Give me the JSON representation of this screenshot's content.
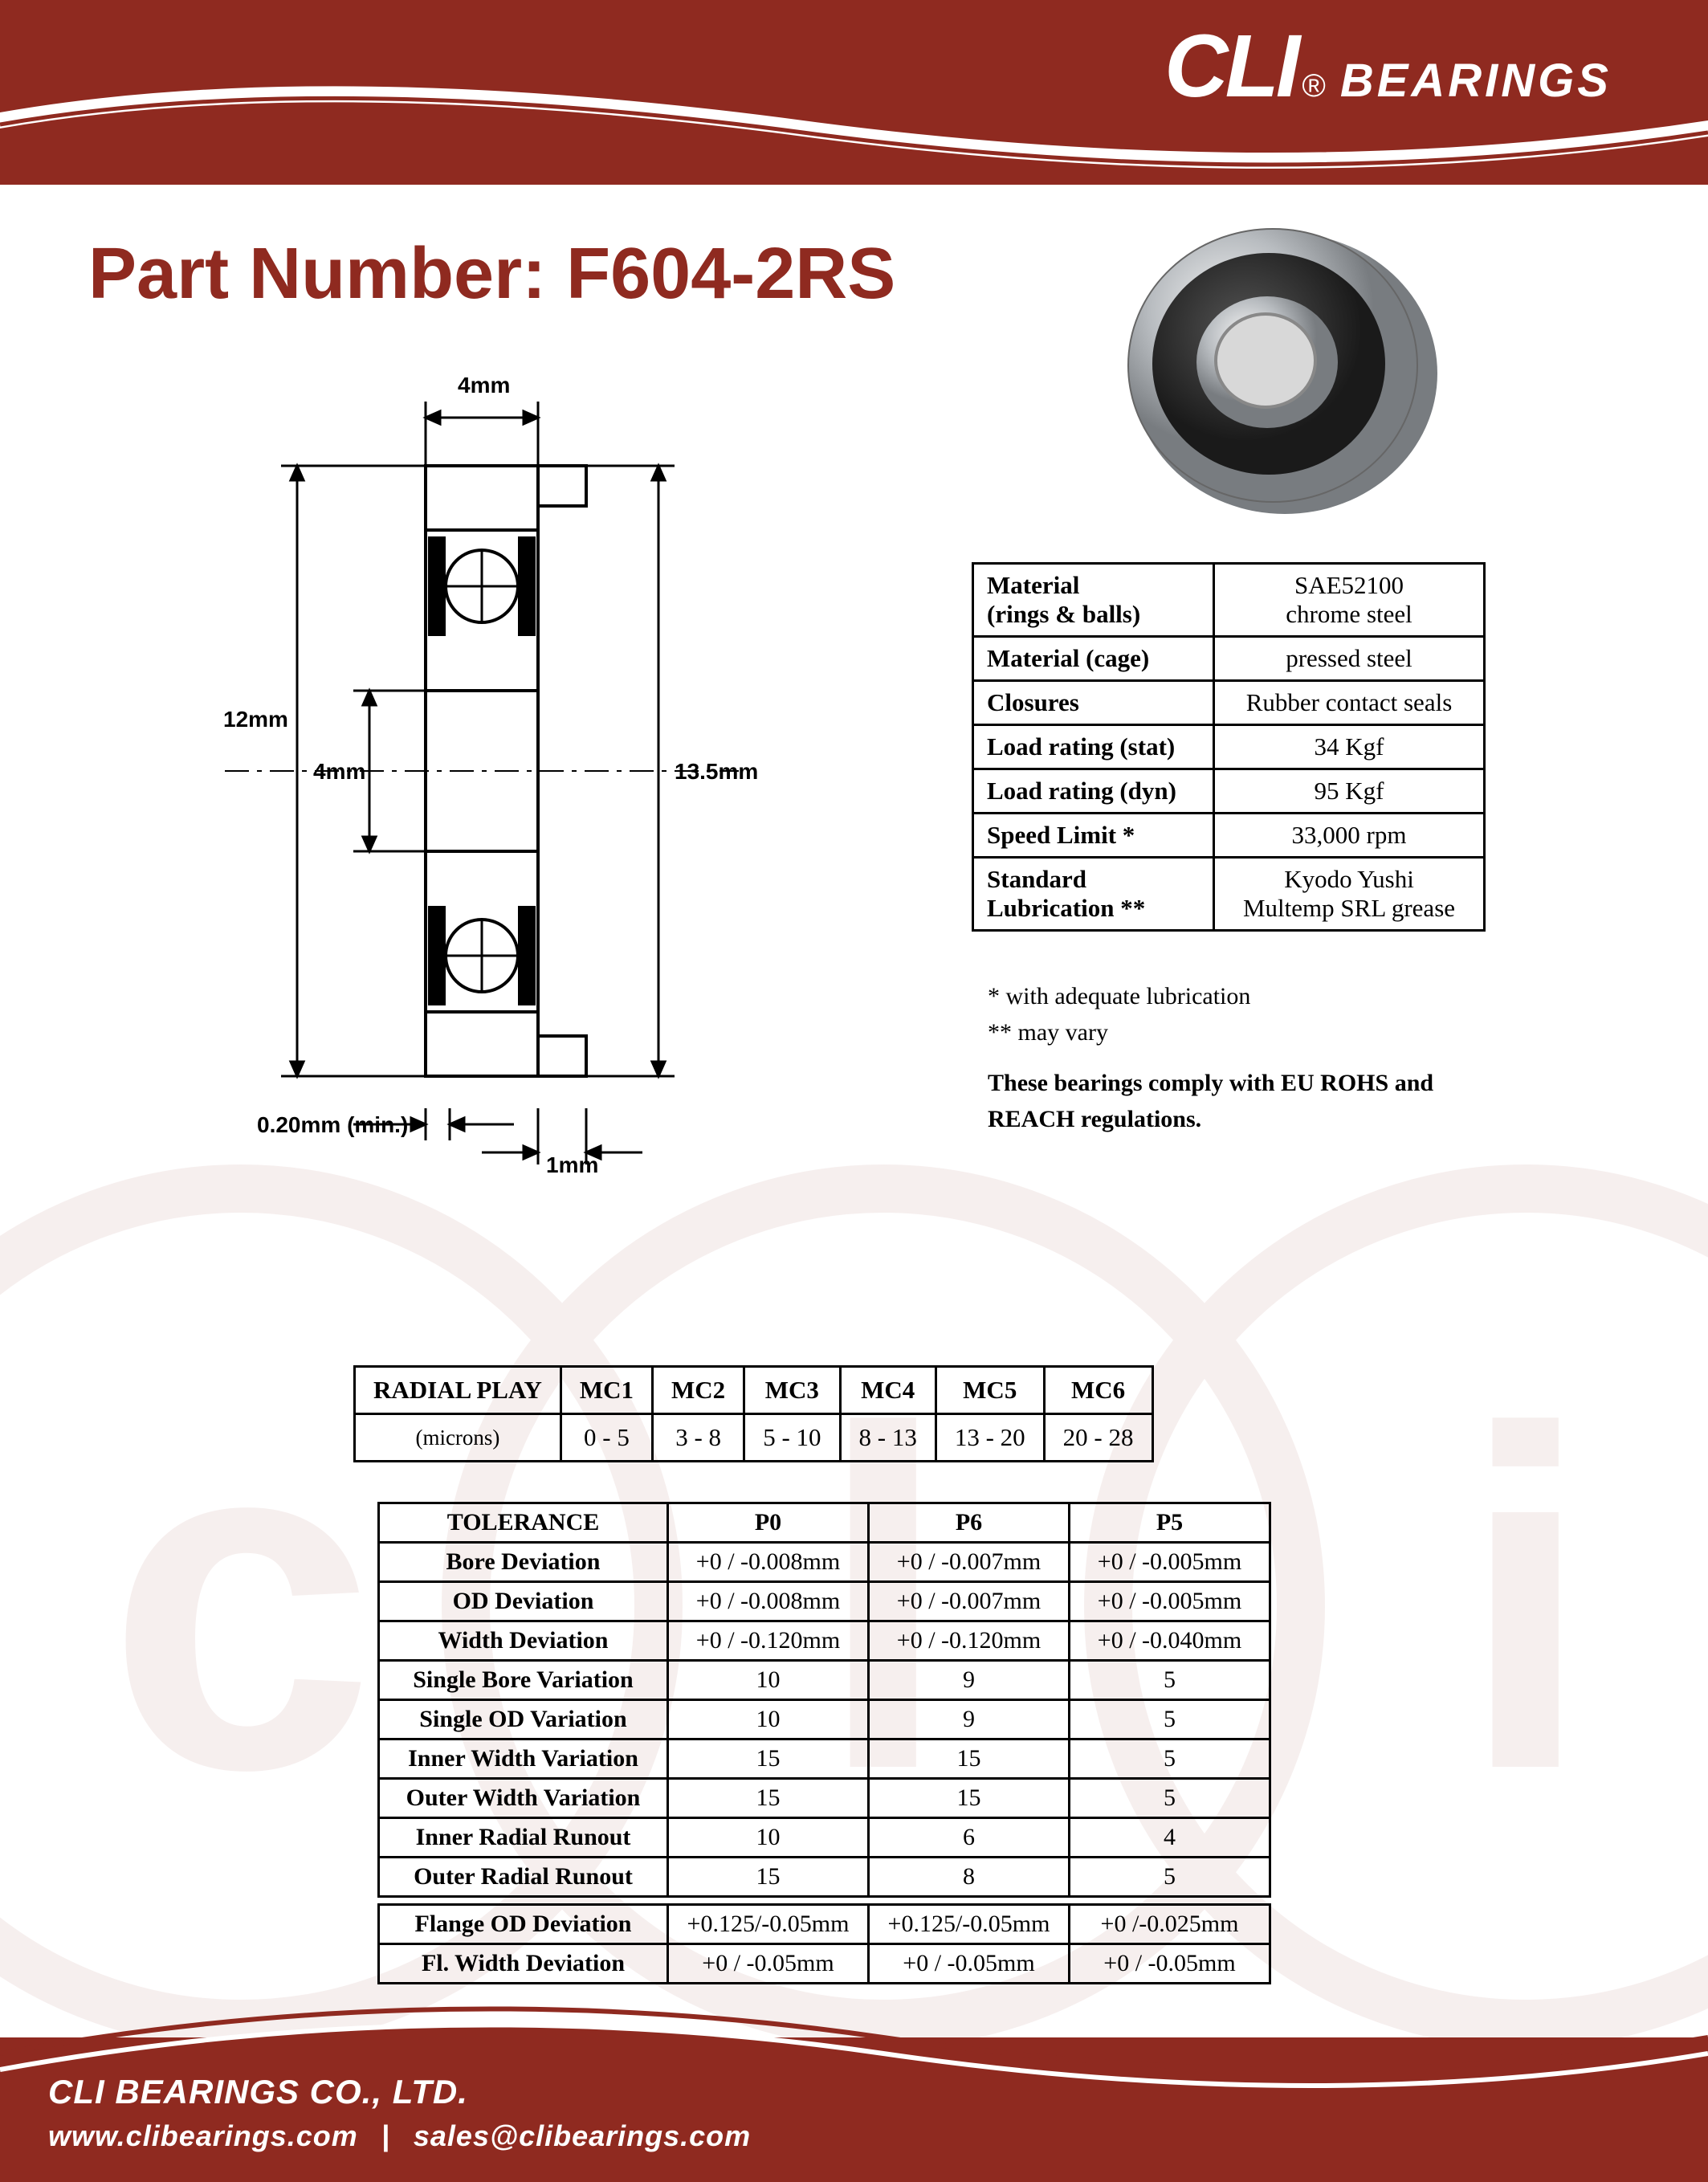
{
  "brand": {
    "logo_main": "CLI",
    "logo_r": "®",
    "logo_sub": "BEARINGS",
    "color_primary": "#8f2a20",
    "color_white": "#ffffff"
  },
  "title": "Part Number: F604-2RS",
  "drawing": {
    "dim_top": "4mm",
    "dim_od": "12mm",
    "dim_bore": "4mm",
    "dim_flange_od": "13.5mm",
    "dim_chamfer": "0.20mm (min.)",
    "dim_flange_w": "1mm"
  },
  "specs": {
    "rows": [
      {
        "label": "Material\n(rings & balls)",
        "value": "SAE52100\nchrome steel"
      },
      {
        "label": "Material (cage)",
        "value": "pressed steel"
      },
      {
        "label": "Closures",
        "value": "Rubber contact seals"
      },
      {
        "label": "Load rating (stat)",
        "value": "34 Kgf"
      },
      {
        "label": "Load rating (dyn)",
        "value": "95 Kgf"
      },
      {
        "label": "Speed Limit *",
        "value": "33,000 rpm"
      },
      {
        "label": "Standard\nLubrication  **",
        "value": "Kyodo Yushi\nMultemp SRL grease"
      }
    ],
    "note1": "*  with adequate lubrication",
    "note2": "** may vary",
    "note3": "These bearings comply with EU ROHS and REACH  regulations."
  },
  "radial_play": {
    "header": "RADIAL PLAY",
    "unit_label": "(microns)",
    "classes": [
      "MC1",
      "MC2",
      "MC3",
      "MC4",
      "MC5",
      "MC6"
    ],
    "values": [
      "0 - 5",
      "3 - 8",
      "5 - 10",
      "8 - 13",
      "13 - 20",
      "20 - 28"
    ]
  },
  "tolerance": {
    "header": "TOLERANCE",
    "grades": [
      "P0",
      "P6",
      "P5"
    ],
    "rows": [
      {
        "label": "Bore Deviation",
        "vals": [
          "+0 / -0.008mm",
          "+0 / -0.007mm",
          "+0 / -0.005mm"
        ]
      },
      {
        "label": "OD Deviation",
        "vals": [
          "+0 / -0.008mm",
          "+0 / -0.007mm",
          "+0 / -0.005mm"
        ]
      },
      {
        "label": "Width Deviation",
        "vals": [
          "+0 / -0.120mm",
          "+0 / -0.120mm",
          "+0 / -0.040mm"
        ]
      },
      {
        "label": "Single Bore Variation",
        "vals": [
          "10",
          "9",
          "5"
        ]
      },
      {
        "label": "Single OD Variation",
        "vals": [
          "10",
          "9",
          "5"
        ]
      },
      {
        "label": "Inner Width Variation",
        "vals": [
          "15",
          "15",
          "5"
        ]
      },
      {
        "label": "Outer Width Variation",
        "vals": [
          "15",
          "15",
          "5"
        ]
      },
      {
        "label": "Inner Radial Runout",
        "vals": [
          "10",
          "6",
          "4"
        ]
      },
      {
        "label": "Outer Radial Runout",
        "vals": [
          "15",
          "8",
          "5"
        ]
      }
    ],
    "flange_rows": [
      {
        "label": "Flange OD Deviation",
        "vals": [
          "+0.125/-0.05mm",
          "+0.125/-0.05mm",
          "+0 /-0.025mm"
        ]
      },
      {
        "label": "Fl. Width Deviation",
        "vals": [
          "+0 / -0.05mm",
          "+0 / -0.05mm",
          "+0 / -0.05mm"
        ]
      }
    ]
  },
  "footer": {
    "company": "CLI BEARINGS CO., LTD.",
    "website": "www.clibearings.com",
    "email": "sales@clibearings.com"
  },
  "style": {
    "title_fontsize": 90,
    "table_fontsize": 31,
    "border_color": "#000000",
    "text_color": "#000000"
  }
}
